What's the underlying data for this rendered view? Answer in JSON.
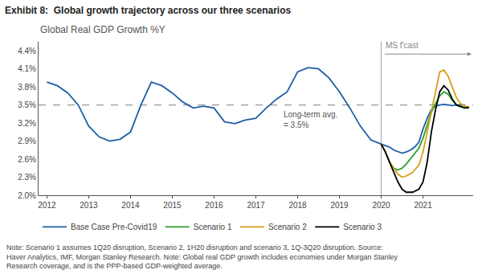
{
  "chart_data": {
    "type": "line",
    "title": "Exhibit 8:  Global growth trajectory across our three scenarios",
    "subtitle": "Global Real GDP Growth %Y",
    "note": "Note: Scenario 1 assumes 1Q20 disruption, Scenario 2, 1H20 disruption and scenario 3, 1Q-3Q20 disruption. Source: Haver Analytics, IMF, Morgan Stanley Research. Note: Global real GDP growth includes economies under Morgan Stanley Research coverage, and is the PPP-based GDP-weighted average.",
    "xlim": [
      2011.8,
      2022.2
    ],
    "xticks": [
      2012,
      2013,
      2014,
      2015,
      2016,
      2017,
      2018,
      2019,
      2020,
      2021
    ],
    "ylim": [
      2.0,
      4.55
    ],
    "yticks": [
      {
        "value": 2.0,
        "label": "2.0%"
      },
      {
        "value": 2.3,
        "label": "2.3%"
      },
      {
        "value": 2.6,
        "label": "2.6%"
      },
      {
        "value": 2.9,
        "label": "2.9%"
      },
      {
        "value": 3.2,
        "label": "3.2%"
      },
      {
        "value": 3.5,
        "label": "3.5%"
      },
      {
        "value": 3.8,
        "label": "3.8%"
      },
      {
        "value": 4.1,
        "label": "4.1%"
      },
      {
        "value": 4.4,
        "label": "4.4%"
      }
    ],
    "grid": false,
    "legend": "bottom",
    "reference_lines": [
      {
        "axis": "y",
        "value": 3.5,
        "color": "#999999",
        "line_style": "dashed",
        "label": "Long-term avg.\n= 3.5%"
      },
      {
        "axis": "x",
        "value": 2020.0,
        "color": "#888888",
        "line_style": "solid",
        "label": "MS f'cast"
      }
    ],
    "series": [
      {
        "name": "Base Case Pre-Covid19",
        "color": "#1f5fa6",
        "x": [
          2012.0,
          2012.25,
          2012.5,
          2012.75,
          2013.0,
          2013.25,
          2013.5,
          2013.75,
          2014.0,
          2014.25,
          2014.5,
          2014.75,
          2015.0,
          2015.25,
          2015.5,
          2015.75,
          2016.0,
          2016.25,
          2016.5,
          2016.75,
          2017.0,
          2017.25,
          2017.5,
          2017.75,
          2018.0,
          2018.25,
          2018.5,
          2018.75,
          2019.0,
          2019.25,
          2019.5,
          2019.75,
          2020.0,
          2020.1,
          2020.2,
          2020.3,
          2020.4,
          2020.5,
          2020.6,
          2020.7,
          2020.8,
          2020.9,
          2021.0,
          2021.1,
          2021.2,
          2021.3,
          2021.4,
          2021.5,
          2021.6,
          2021.7,
          2021.8,
          2021.9,
          2022.0
        ],
        "values": [
          3.88,
          3.82,
          3.7,
          3.5,
          3.15,
          2.97,
          2.9,
          2.93,
          3.05,
          3.5,
          3.88,
          3.82,
          3.7,
          3.55,
          3.45,
          3.48,
          3.45,
          3.22,
          3.19,
          3.25,
          3.28,
          3.45,
          3.6,
          3.72,
          4.05,
          4.12,
          4.1,
          3.95,
          3.72,
          3.45,
          3.15,
          2.92,
          2.85,
          2.82,
          2.8,
          2.75,
          2.72,
          2.7,
          2.72,
          2.75,
          2.8,
          2.88,
          3.1,
          3.28,
          3.42,
          3.48,
          3.5,
          3.51,
          3.5,
          3.49,
          3.5,
          3.5,
          3.5
        ]
      },
      {
        "name": "Scenario 1",
        "color": "#2ca02c",
        "x": [
          2020.0,
          2020.1,
          2020.2,
          2020.3,
          2020.4,
          2020.5,
          2020.6,
          2020.75,
          2020.9,
          2021.0,
          2021.1,
          2021.2,
          2021.3,
          2021.4,
          2021.5,
          2021.6,
          2021.7,
          2021.8,
          2021.9,
          2022.0,
          2022.1
        ],
        "values": [
          2.85,
          2.72,
          2.55,
          2.45,
          2.42,
          2.45,
          2.52,
          2.65,
          2.78,
          2.95,
          3.18,
          3.38,
          3.52,
          3.65,
          3.72,
          3.68,
          3.58,
          3.5,
          3.47,
          3.45,
          3.45
        ]
      },
      {
        "name": "Scenario 2",
        "color": "#d4a017",
        "x": [
          2020.0,
          2020.1,
          2020.2,
          2020.3,
          2020.4,
          2020.5,
          2020.6,
          2020.75,
          2020.9,
          2021.0,
          2021.1,
          2021.2,
          2021.3,
          2021.4,
          2021.5,
          2021.6,
          2021.7,
          2021.8,
          2021.9,
          2022.0,
          2022.1
        ],
        "values": [
          2.85,
          2.72,
          2.55,
          2.45,
          2.35,
          2.3,
          2.32,
          2.38,
          2.5,
          2.72,
          3.05,
          3.42,
          3.75,
          4.05,
          4.08,
          3.98,
          3.8,
          3.62,
          3.52,
          3.48,
          3.47
        ]
      },
      {
        "name": "Scenario 3",
        "color": "#000000",
        "x": [
          2020.0,
          2020.1,
          2020.2,
          2020.3,
          2020.4,
          2020.5,
          2020.6,
          2020.75,
          2020.9,
          2021.0,
          2021.1,
          2021.2,
          2021.3,
          2021.4,
          2021.5,
          2021.6,
          2021.7,
          2021.8,
          2021.9,
          2022.0,
          2022.1
        ],
        "values": [
          2.85,
          2.72,
          2.55,
          2.38,
          2.22,
          2.1,
          2.05,
          2.05,
          2.1,
          2.22,
          2.55,
          3.05,
          3.42,
          3.72,
          3.82,
          3.75,
          3.6,
          3.5,
          3.47,
          3.45,
          3.46
        ]
      }
    ]
  }
}
